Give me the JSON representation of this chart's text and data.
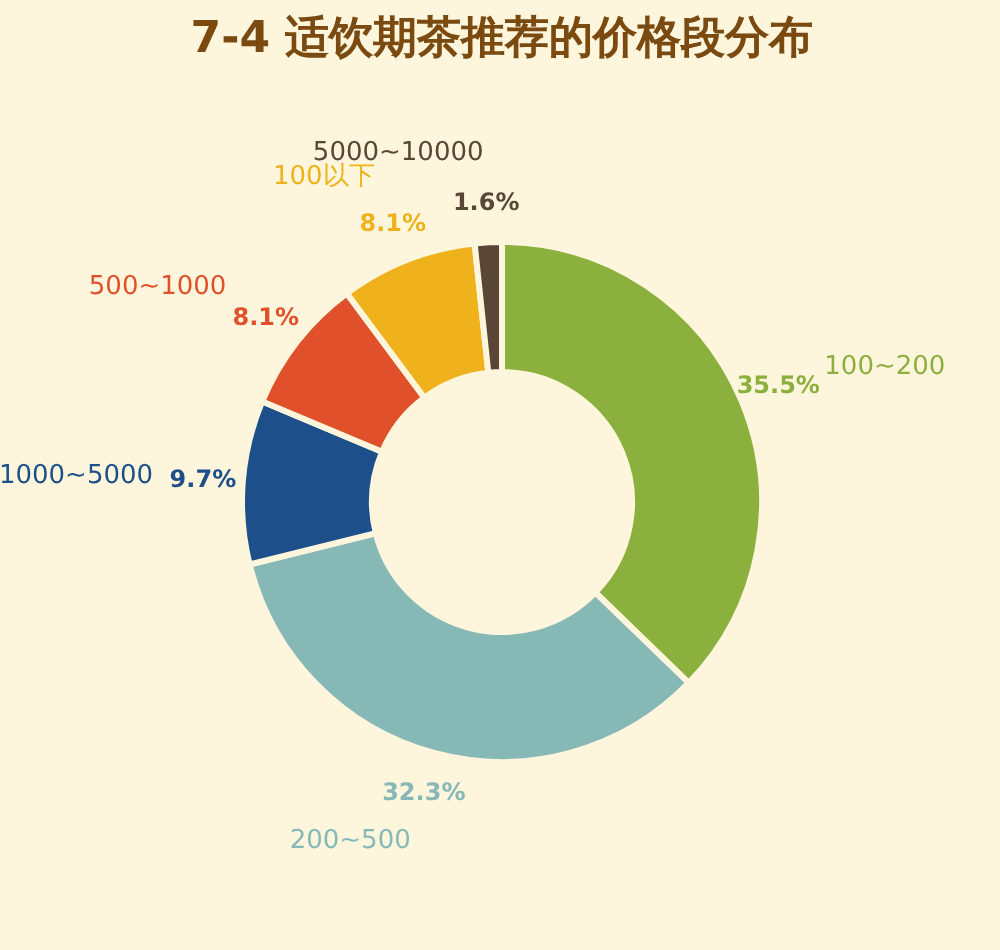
{
  "chart_data": {
    "type": "donut",
    "title": "7-4 适饮期茶推荐的价格段分布",
    "categories": [
      "100~200",
      "200~500",
      "1000~5000",
      "500~1000",
      "100以下",
      "5000~10000"
    ],
    "values": [
      35.5,
      32.3,
      9.7,
      8.1,
      8.1,
      1.6
    ],
    "value_labels": [
      "35.5%",
      "32.3%",
      "9.7%",
      "8.1%",
      "8.1%",
      "1.6%"
    ],
    "colors": [
      "#8cb03e",
      "#86b8b6",
      "#1d4f8a",
      "#e0512b",
      "#f0b21c",
      "#5a4636"
    ]
  }
}
